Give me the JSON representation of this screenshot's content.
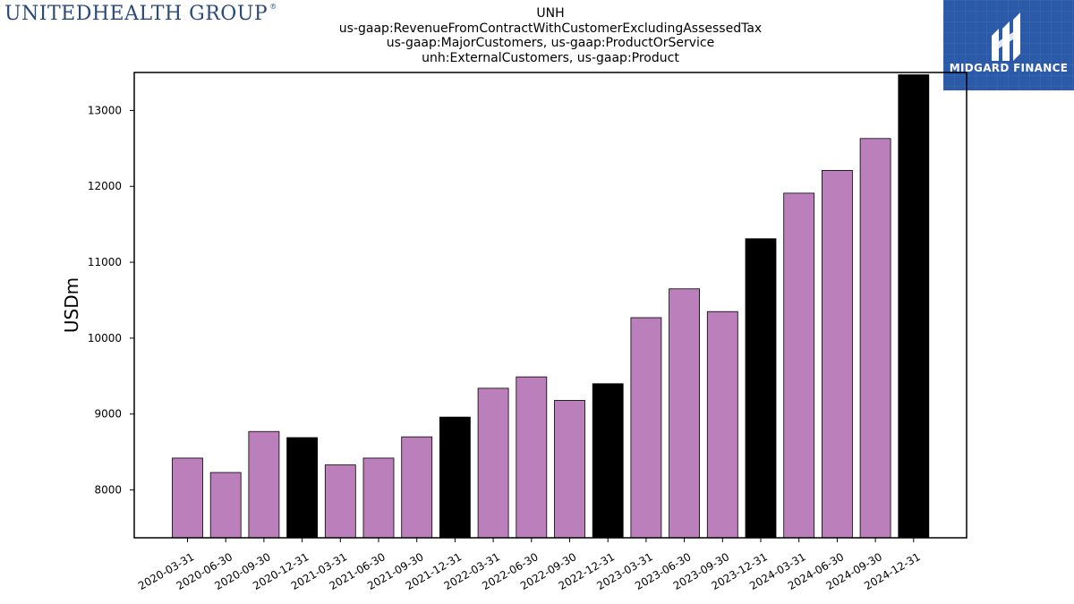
{
  "brand": {
    "logo_text": "UNITEDHEALTH GROUP",
    "logo_mark": "®"
  },
  "badge": {
    "label": "MIDGARD FINANCE",
    "icon": "midgard-logo-icon",
    "color": "#2b5aa8"
  },
  "chart_data": {
    "type": "bar",
    "title_lines": [
      "UNH",
      "us-gaap:RevenueFromContractWithCustomerExcludingAssessedTax",
      "us-gaap:MajorCustomers, us-gaap:ProductOrService",
      "unh:ExternalCustomers, us-gaap:Product"
    ],
    "xlabel": "",
    "ylabel": "USDm",
    "ylim": [
      7370,
      13500
    ],
    "yticks": [
      8000,
      9000,
      10000,
      11000,
      12000,
      13000
    ],
    "grid": false,
    "categories": [
      "2020-03-31",
      "2020-06-30",
      "2020-09-30",
      "2020-12-31",
      "2021-03-31",
      "2021-06-30",
      "2021-09-30",
      "2021-12-31",
      "2022-03-31",
      "2022-06-30",
      "2022-09-30",
      "2022-12-31",
      "2023-03-31",
      "2023-06-30",
      "2023-09-30",
      "2023-12-31",
      "2024-03-31",
      "2024-06-30",
      "2024-09-30",
      "2024-12-31"
    ],
    "values": [
      8420,
      8230,
      8770,
      8690,
      8330,
      8420,
      8700,
      8960,
      9340,
      9490,
      9180,
      9400,
      10270,
      10650,
      10350,
      11310,
      11910,
      12210,
      12630,
      13470
    ],
    "bar_colors": {
      "quarter": "#bb7fbb",
      "year_end": "#000000"
    }
  }
}
